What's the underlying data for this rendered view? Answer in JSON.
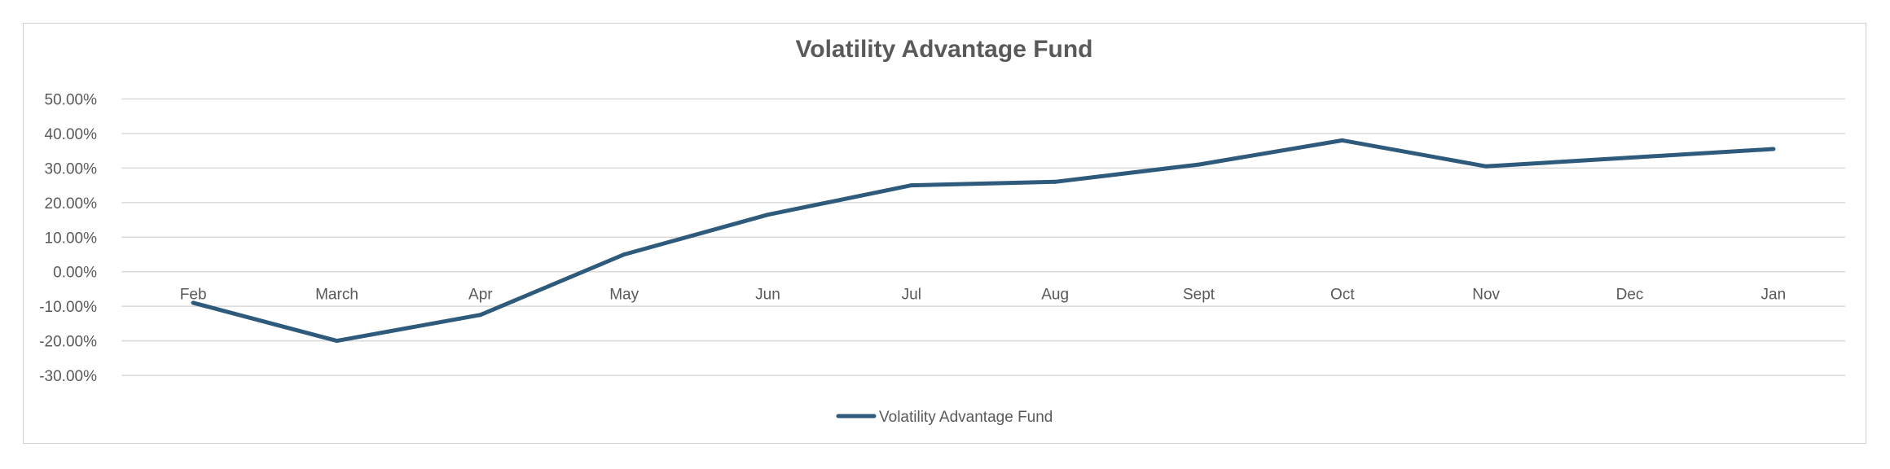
{
  "chart_data": {
    "type": "line",
    "title": "Volatility Advantage Fund",
    "xlabel": "",
    "ylabel": "",
    "categories": [
      "Feb",
      "March",
      "Apr",
      "May",
      "Jun",
      "Jul",
      "Aug",
      "Sept",
      "Oct",
      "Nov",
      "Dec",
      "Jan"
    ],
    "series": [
      {
        "name": "Volatility Advantage Fund",
        "color": "#2e5a7c",
        "values": [
          -0.09,
          -0.2,
          -0.125,
          0.05,
          0.165,
          0.25,
          0.26,
          0.31,
          0.38,
          0.305,
          0.33,
          0.355
        ]
      }
    ],
    "ylim": [
      -0.3,
      0.5
    ],
    "yticks": [
      0.5,
      0.4,
      0.3,
      0.2,
      0.1,
      0.0,
      -0.1,
      -0.2,
      -0.3
    ],
    "ytick_labels": [
      "50.00%",
      "40.00%",
      "30.00%",
      "20.00%",
      "10.00%",
      "0.00%",
      "-10.00%",
      "-20.00%",
      "-30.00%"
    ],
    "grid": true,
    "legend_position": "bottom",
    "colors": {
      "gridline": "#d9d9d9",
      "text": "#595959",
      "border": "#d0d0d0"
    }
  }
}
